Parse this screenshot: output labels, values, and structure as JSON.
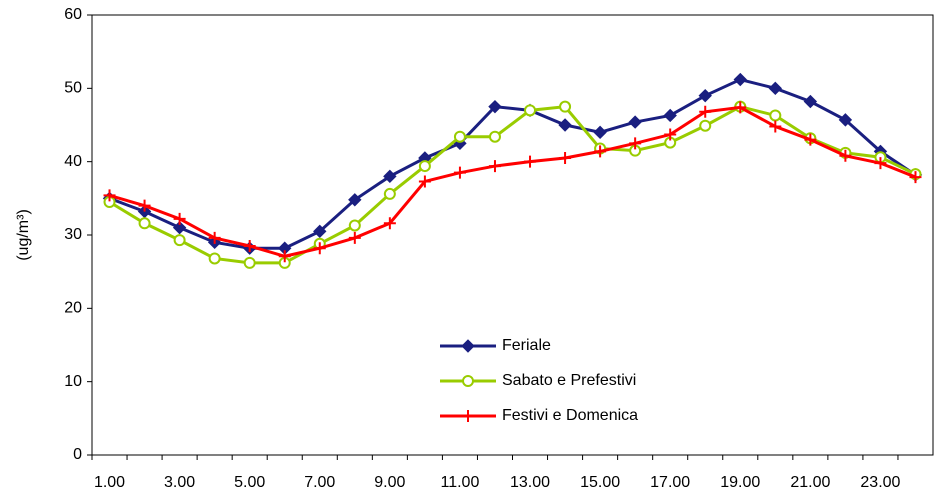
{
  "chart_data": {
    "type": "line",
    "y_label": "(ug/m³)",
    "categories": [
      "1.00",
      null,
      "3.00",
      null,
      "5.00",
      null,
      "7.00",
      null,
      "9.00",
      null,
      "11.00",
      null,
      "13.00",
      null,
      "15.00",
      null,
      "17.00",
      null,
      "19.00",
      null,
      "21.00",
      null,
      "23.00",
      null
    ],
    "series": [
      {
        "name": "Feriale",
        "color": "#1a1f80",
        "marker": "diamond",
        "values": [
          35,
          33.2,
          31,
          29,
          28.2,
          28.2,
          30.5,
          34.8,
          38,
          40.5,
          42.5,
          47.5,
          47,
          45,
          44,
          45.4,
          46.3,
          49,
          51.2,
          50,
          48.2,
          45.7,
          41.4,
          38.2
        ]
      },
      {
        "name": "Sabato e Prefestivi",
        "color": "#99cc00",
        "marker": "circle",
        "values": [
          34.5,
          31.6,
          29.3,
          26.8,
          26.2,
          26.2,
          28.8,
          31.3,
          35.6,
          39.4,
          43.4,
          43.4,
          47,
          47.5,
          41.8,
          41.5,
          42.6,
          44.9,
          47.5,
          46.3,
          43.2,
          41.2,
          40.6,
          38.3
        ]
      },
      {
        "name": "Festivi e Domenica",
        "color": "#ff0000",
        "marker": "plus",
        "values": [
          35.4,
          34,
          32.2,
          29.6,
          28.5,
          27.1,
          28.2,
          29.6,
          31.6,
          37.3,
          38.5,
          39.4,
          40,
          40.5,
          41.4,
          42.5,
          43.7,
          46.8,
          47.4,
          44.8,
          43,
          40.8,
          39.8,
          37.9
        ]
      }
    ],
    "ylim": [
      0,
      60
    ],
    "yticks": [
      0,
      10,
      20,
      30,
      40,
      50,
      60
    ],
    "grid": false
  }
}
